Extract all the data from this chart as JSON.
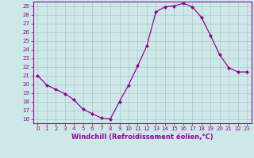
{
  "x": [
    0,
    1,
    2,
    3,
    4,
    5,
    6,
    7,
    8,
    9,
    10,
    11,
    12,
    13,
    14,
    15,
    16,
    17,
    18,
    19,
    20,
    21,
    22,
    23
  ],
  "y": [
    21.0,
    19.9,
    19.4,
    18.9,
    18.2,
    17.1,
    16.6,
    16.1,
    16.0,
    18.0,
    19.9,
    22.1,
    24.4,
    28.3,
    28.9,
    29.0,
    29.3,
    28.9,
    27.7,
    25.6,
    23.4,
    21.9,
    21.4,
    21.4
  ],
  "line_color": "#990099",
  "marker": "D",
  "markersize": 2.0,
  "linewidth": 0.9,
  "bg_color": "#cce8e8",
  "grid_color": "#b0c8c8",
  "xlabel": "Windchill (Refroidissement éolien,°C)",
  "ylabel": "",
  "ylim": [
    15.5,
    29.5
  ],
  "yticks": [
    16,
    17,
    18,
    19,
    20,
    21,
    22,
    23,
    24,
    25,
    26,
    27,
    28,
    29
  ],
  "xticks": [
    0,
    1,
    2,
    3,
    4,
    5,
    6,
    7,
    8,
    9,
    10,
    11,
    12,
    13,
    14,
    15,
    16,
    17,
    18,
    19,
    20,
    21,
    22,
    23
  ],
  "xlim": [
    -0.5,
    23.5
  ],
  "tick_color": "#990099",
  "label_color": "#990099",
  "tick_fontsize": 5.0,
  "xlabel_fontsize": 6.0,
  "spine_color": "#990099"
}
